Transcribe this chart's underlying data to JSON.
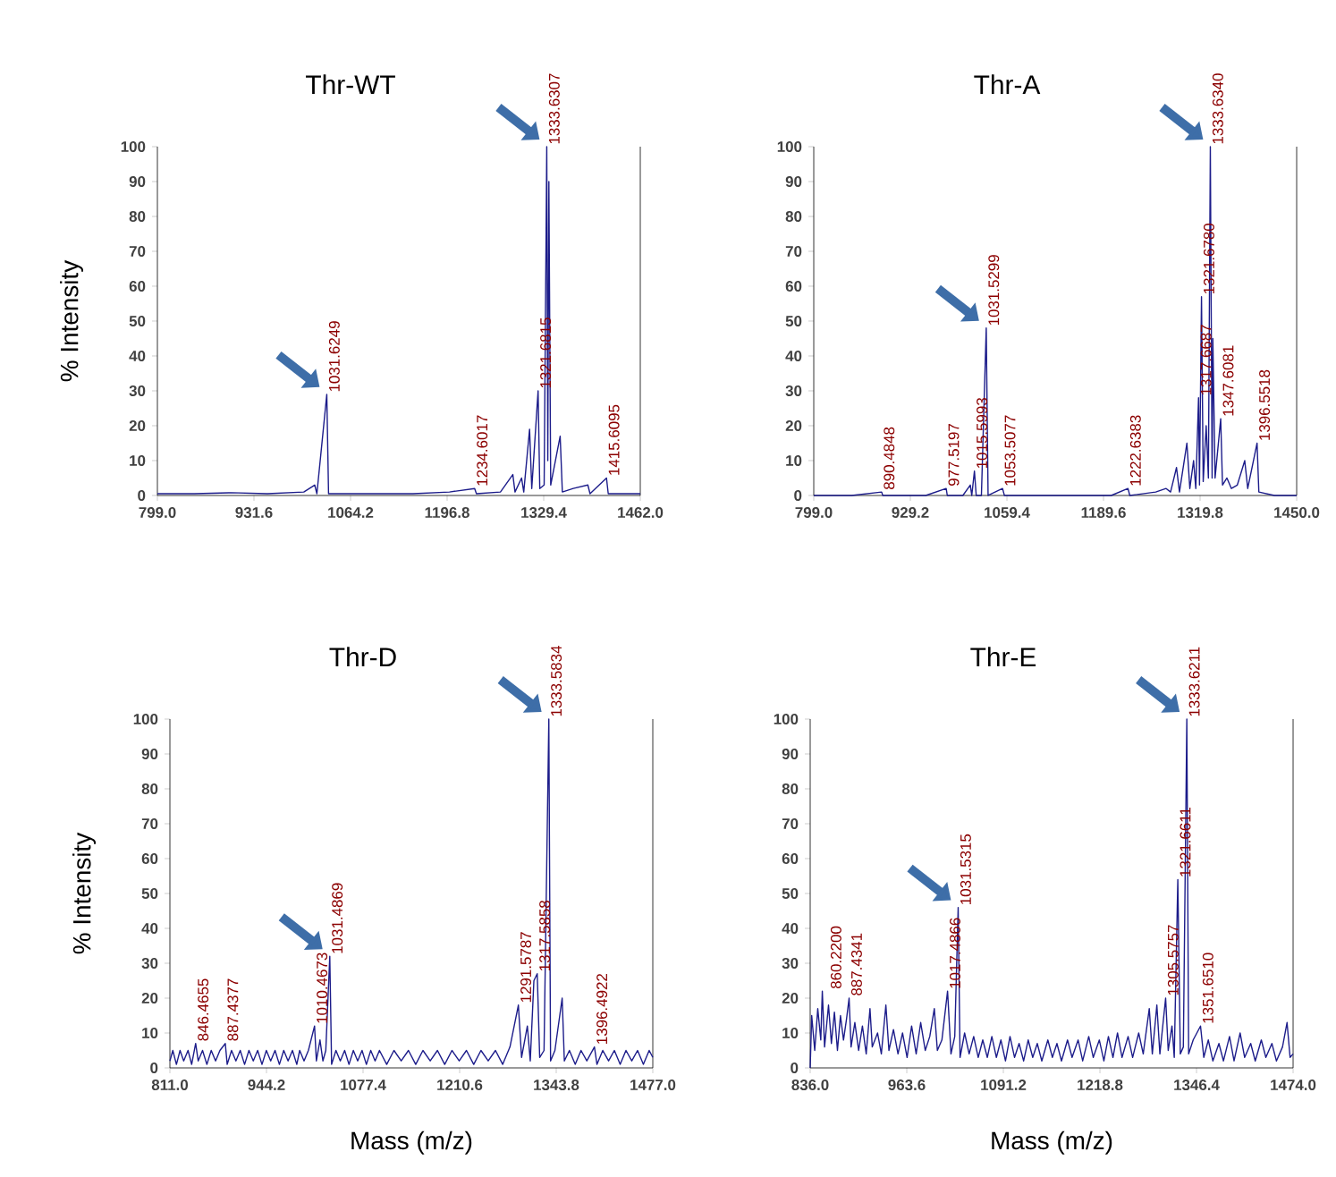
{
  "chart_data": [
    {
      "type": "line",
      "title": "Thr-WT",
      "ylabel": "% Intensity",
      "xlim": [
        799,
        1462
      ],
      "ylim": [
        0,
        100
      ],
      "xticks": [
        {
          "value": 799,
          "label": "799.0"
        },
        931.6,
        1064.2,
        1196.8,
        1329.4,
        {
          "value": 1462,
          "label": "1462.0"
        }
      ],
      "yticks": [
        0,
        10,
        20,
        30,
        40,
        50,
        60,
        70,
        80,
        90,
        100
      ],
      "series": [
        {
          "color": "#1c1c8a",
          "x": [
            799,
            850,
            900,
            950,
            1000,
            1015,
            1018,
            1031.6,
            1034,
            1100,
            1150,
            1200,
            1234.6,
            1237,
            1270,
            1287,
            1290,
            1299,
            1302,
            1310,
            1313,
            1321.7,
            1324,
            1330,
            1333.6,
            1335,
            1336.5,
            1339,
            1352,
            1355,
            1370,
            1390,
            1393,
            1415.6,
            1418,
            1462
          ],
          "values": [
            0.5,
            0.5,
            0.8,
            0.5,
            1,
            3,
            0.5,
            29,
            0.5,
            0.5,
            0.5,
            1,
            2,
            0.5,
            1,
            6,
            1,
            5,
            1,
            19,
            2,
            30,
            2,
            3,
            100,
            10,
            90,
            3,
            17,
            1,
            2,
            3,
            0.5,
            5,
            0.5,
            0.5
          ]
        }
      ],
      "annotations": [
        {
          "text": "1333.6307",
          "x": 1333.6307,
          "y": 100
        },
        {
          "text": "1031.6249",
          "x": 1031.6249,
          "y": 29
        },
        {
          "text": "1321.6815",
          "x": 1321.6815,
          "y": 30
        },
        {
          "text": "1234.6017",
          "x": 1234.6017,
          "y": 2
        },
        {
          "text": "1415.6095",
          "x": 1415.6095,
          "y": 5
        }
      ]
    },
    {
      "type": "line",
      "title": "Thr-A",
      "xlim": [
        799,
        1450
      ],
      "ylim": [
        0,
        100
      ],
      "xticks": [
        {
          "value": 799,
          "label": "799.0"
        },
        929.2,
        1059.4,
        1189.6,
        1319.8,
        {
          "value": 1450,
          "label": "1450.0"
        }
      ],
      "yticks": [
        0,
        10,
        20,
        30,
        40,
        50,
        60,
        70,
        80,
        90,
        100
      ],
      "series": [
        {
          "color": "#1c1c8a",
          "x": [
            799,
            850,
            890.5,
            892,
            950,
            977.5,
            979,
            1000,
            1010,
            1012,
            1015.6,
            1018,
            1025,
            1031.5,
            1034,
            1053.5,
            1056,
            1100,
            1150,
            1200,
            1222.6,
            1225,
            1260,
            1274,
            1280,
            1288,
            1292,
            1302,
            1306,
            1311,
            1314,
            1317.7,
            1319,
            1321.7,
            1324,
            1328,
            1331,
            1333.6,
            1336,
            1337,
            1340,
            1347.6,
            1350,
            1356,
            1362,
            1370,
            1380,
            1384,
            1396.6,
            1399,
            1420,
            1450
          ],
          "values": [
            0,
            0,
            1,
            0,
            0,
            2,
            0,
            0,
            3,
            0,
            7,
            0,
            0,
            48,
            0,
            2,
            0,
            0,
            0,
            0,
            2,
            0,
            1,
            2,
            1,
            8,
            1,
            15,
            2,
            10,
            2,
            28,
            3,
            57,
            4,
            20,
            5,
            100,
            5,
            45,
            5,
            22,
            3,
            5,
            2,
            3,
            10,
            2,
            15,
            1,
            0,
            0
          ]
        }
      ],
      "annotations": [
        {
          "text": "1333.6340",
          "x": 1333.634,
          "y": 100
        },
        {
          "text": "1031.5299",
          "x": 1031.5299,
          "y": 48
        },
        {
          "text": "1321.6780",
          "x": 1321.678,
          "y": 57
        },
        {
          "text": "1317.6687",
          "x": 1317.6687,
          "y": 28
        },
        {
          "text": "890.4848",
          "x": 890.4848,
          "y": 1
        },
        {
          "text": "977.5197",
          "x": 977.5197,
          "y": 2
        },
        {
          "text": "1015.5993",
          "x": 1015.5993,
          "y": 7
        },
        {
          "text": "1053.5077",
          "x": 1053.5077,
          "y": 2
        },
        {
          "text": "1222.6383",
          "x": 1222.6383,
          "y": 2
        },
        {
          "text": "1347.6081",
          "x": 1347.6081,
          "y": 22
        },
        {
          "text": "1396.5518",
          "x": 1396.5518,
          "y": 15
        }
      ]
    },
    {
      "type": "line",
      "title": "Thr-D",
      "ylabel": "% Intensity",
      "xlabel": "Mass (m/z)",
      "xlim": [
        811,
        1477
      ],
      "ylim": [
        0,
        100
      ],
      "xticks": [
        {
          "value": 811,
          "label": "811.0"
        },
        944.2,
        1077.4,
        1210.6,
        1343.8,
        {
          "value": 1477,
          "label": "1477.0"
        }
      ],
      "yticks": [
        0,
        10,
        20,
        30,
        40,
        50,
        60,
        70,
        80,
        90,
        100
      ],
      "series": [
        {
          "color": "#1c1c8a",
          "x": [
            811,
            815,
            820,
            825,
            830,
            836,
            841,
            846.5,
            850,
            856,
            862,
            868,
            874,
            880,
            887.4,
            890,
            896,
            902,
            908,
            914,
            920,
            926,
            932,
            938,
            944,
            950,
            956,
            962,
            968,
            974,
            980,
            986,
            990,
            996,
            1002,
            1010.5,
            1013,
            1018,
            1022,
            1026,
            1031.5,
            1034,
            1040,
            1046,
            1052,
            1058,
            1064,
            1070,
            1076,
            1082,
            1088,
            1094,
            1100,
            1110,
            1120,
            1130,
            1140,
            1150,
            1160,
            1170,
            1180,
            1190,
            1200,
            1210,
            1220,
            1230,
            1240,
            1250,
            1260,
            1270,
            1280,
            1291.6,
            1296,
            1304,
            1308,
            1313,
            1317.6,
            1321,
            1327,
            1333.6,
            1336,
            1342,
            1352,
            1355,
            1362,
            1370,
            1378,
            1386,
            1396.5,
            1400,
            1408,
            1416,
            1424,
            1432,
            1440,
            1448,
            1456,
            1464,
            1472,
            1477
          ],
          "values": [
            2,
            5,
            1,
            5,
            2,
            5,
            1,
            7,
            2,
            5,
            1,
            5,
            2,
            5,
            7,
            1,
            5,
            2,
            5,
            1,
            5,
            2,
            5,
            1,
            5,
            2,
            5,
            1,
            5,
            2,
            5,
            1,
            5,
            2,
            5,
            12,
            2,
            8,
            2,
            5,
            32,
            1,
            5,
            2,
            5,
            1,
            5,
            2,
            5,
            1,
            5,
            2,
            5,
            1,
            5,
            2,
            5,
            1,
            5,
            2,
            5,
            1,
            5,
            2,
            5,
            1,
            5,
            2,
            5,
            1,
            6,
            18,
            3,
            12,
            2,
            25,
            27,
            3,
            5,
            100,
            2,
            5,
            20,
            2,
            5,
            1,
            5,
            2,
            6,
            1,
            5,
            2,
            5,
            1,
            5,
            2,
            5,
            1,
            5,
            3
          ]
        }
      ],
      "annotations": [
        {
          "text": "1333.5834",
          "x": 1333.5834,
          "y": 100
        },
        {
          "text": "1031.4869",
          "x": 1031.4869,
          "y": 32
        },
        {
          "text": "1317.5858",
          "x": 1317.5858,
          "y": 27
        },
        {
          "text": "846.4655",
          "x": 846.4655,
          "y": 7
        },
        {
          "text": "887.4377",
          "x": 887.4377,
          "y": 7
        },
        {
          "text": "1010.4673",
          "x": 1010.4673,
          "y": 12
        },
        {
          "text": "1291.5787",
          "x": 1291.5787,
          "y": 18
        },
        {
          "text": "1396.4922",
          "x": 1396.4922,
          "y": 6
        }
      ]
    },
    {
      "type": "line",
      "title": "Thr-E",
      "xlabel": "Mass (m/z)",
      "xlim": [
        836,
        1474
      ],
      "ylim": [
        0,
        100
      ],
      "xticks": [
        {
          "value": 836,
          "label": "836.0"
        },
        963.6,
        1091.2,
        1218.8,
        1346.4,
        {
          "value": 1474,
          "label": "1474.0"
        }
      ],
      "yticks": [
        0,
        10,
        20,
        30,
        40,
        50,
        60,
        70,
        80,
        90,
        100
      ],
      "series": [
        {
          "color": "#1c1c8a",
          "x": [
            836,
            838,
            842,
            846,
            850,
            852,
            855,
            860.2,
            864,
            868,
            872,
            876,
            880,
            884,
            887.4,
            890,
            895,
            900,
            905,
            910,
            915,
            918,
            925,
            930,
            936,
            940,
            946,
            952,
            958,
            964,
            970,
            976,
            982,
            988,
            994,
            1000,
            1004,
            1010,
            1017.5,
            1022,
            1027,
            1031.5,
            1034,
            1040,
            1046,
            1052,
            1058,
            1064,
            1070,
            1076,
            1082,
            1088,
            1094,
            1100,
            1106,
            1112,
            1118,
            1124,
            1130,
            1136,
            1142,
            1150,
            1156,
            1162,
            1168,
            1176,
            1182,
            1190,
            1196,
            1204,
            1210,
            1218,
            1224,
            1230,
            1236,
            1242,
            1248,
            1256,
            1262,
            1270,
            1276,
            1284,
            1288,
            1294,
            1298,
            1305.6,
            1309,
            1314,
            1317,
            1321.7,
            1325,
            1329,
            1333.6,
            1336,
            1342,
            1351.7,
            1356,
            1362,
            1368,
            1376,
            1382,
            1390,
            1396,
            1404,
            1410,
            1418,
            1424,
            1432,
            1438,
            1446,
            1452,
            1460,
            1466,
            1470,
            1474
          ],
          "values": [
            0,
            15,
            5,
            17,
            8,
            22,
            6,
            18,
            7,
            16,
            5,
            15,
            8,
            14,
            20,
            6,
            13,
            5,
            12,
            4,
            17,
            6,
            10,
            4,
            18,
            5,
            11,
            4,
            10,
            3,
            12,
            4,
            13,
            5,
            9,
            17,
            5,
            8,
            22,
            4,
            9,
            46,
            3,
            10,
            4,
            9,
            3,
            8,
            3,
            9,
            3,
            8,
            2,
            9,
            3,
            7,
            2,
            8,
            3,
            7,
            2,
            8,
            3,
            7,
            2,
            8,
            3,
            8,
            2,
            9,
            3,
            8,
            2,
            9,
            3,
            10,
            3,
            9,
            3,
            10,
            4,
            17,
            4,
            18,
            4,
            20,
            5,
            12,
            3,
            54,
            4,
            6,
            100,
            4,
            8,
            12,
            3,
            8,
            2,
            7,
            2,
            9,
            2,
            10,
            3,
            7,
            2,
            8,
            3,
            7,
            2,
            6,
            13,
            3,
            4
          ]
        }
      ],
      "annotations": [
        {
          "text": "1333.6211",
          "x": 1333.6211,
          "y": 100
        },
        {
          "text": "1031.5315",
          "x": 1031.5315,
          "y": 46
        },
        {
          "text": "1321.6611",
          "x": 1321.6611,
          "y": 54
        },
        {
          "text": "860.2200",
          "x": 860.22,
          "y": 22
        },
        {
          "text": "887.4341",
          "x": 887.4341,
          "y": 20
        },
        {
          "text": "1017.4866",
          "x": 1017.4866,
          "y": 22
        },
        {
          "text": "1305.5757",
          "x": 1305.5757,
          "y": 20
        },
        {
          "text": "1351.6510",
          "x": 1351.651,
          "y": 12
        }
      ]
    }
  ]
}
